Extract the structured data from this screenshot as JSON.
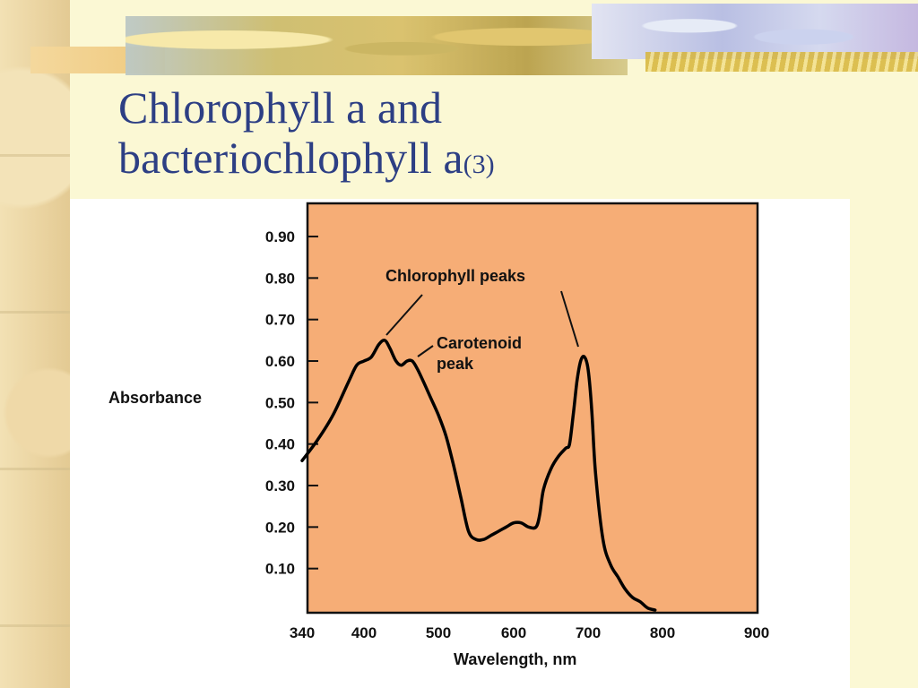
{
  "slide": {
    "title_line1": "Chlorophyll a and",
    "title_line2": "bacteriochlophyll a",
    "title_sub": "(3)"
  },
  "chart_data": {
    "type": "line",
    "xlabel": "Wavelength, nm",
    "ylabel": "Absorbance",
    "x_ticks": [
      "340",
      "400",
      "500",
      "600",
      "700",
      "800",
      "900"
    ],
    "y_ticks": [
      "0.90",
      "0.80",
      "0.70",
      "0.60",
      "0.50",
      "0.40",
      "0.30",
      "0.20",
      "0.10"
    ],
    "xlim": [
      340,
      900
    ],
    "ylim": [
      0,
      0.95
    ],
    "plot_background": "#f6ad76",
    "line_color": "#000000",
    "annotations": [
      {
        "text": "Chlorophyll peaks"
      },
      {
        "line1": "Carotenoid",
        "line2": "peak"
      }
    ],
    "series": [
      {
        "x": [
          340,
          355,
          370,
          385,
          393,
          400,
          410,
          420,
          428,
          435,
          443,
          450,
          458,
          465,
          472,
          480,
          490,
          500,
          510,
          520,
          530,
          540,
          550,
          560,
          570,
          580,
          590,
          600,
          610,
          620,
          630,
          635,
          640,
          650,
          660,
          670,
          675,
          680,
          685,
          690,
          695,
          700,
          705,
          710,
          720,
          730,
          740,
          750,
          760,
          770,
          780,
          790
        ],
        "y": [
          0.36,
          0.41,
          0.47,
          0.55,
          0.59,
          0.6,
          0.61,
          0.64,
          0.65,
          0.63,
          0.6,
          0.59,
          0.6,
          0.6,
          0.58,
          0.55,
          0.51,
          0.47,
          0.42,
          0.35,
          0.27,
          0.19,
          0.17,
          0.17,
          0.18,
          0.19,
          0.2,
          0.21,
          0.21,
          0.2,
          0.2,
          0.23,
          0.29,
          0.34,
          0.37,
          0.39,
          0.4,
          0.47,
          0.55,
          0.6,
          0.61,
          0.58,
          0.48,
          0.33,
          0.17,
          0.11,
          0.08,
          0.05,
          0.03,
          0.02,
          0.005,
          0.0
        ]
      }
    ]
  }
}
